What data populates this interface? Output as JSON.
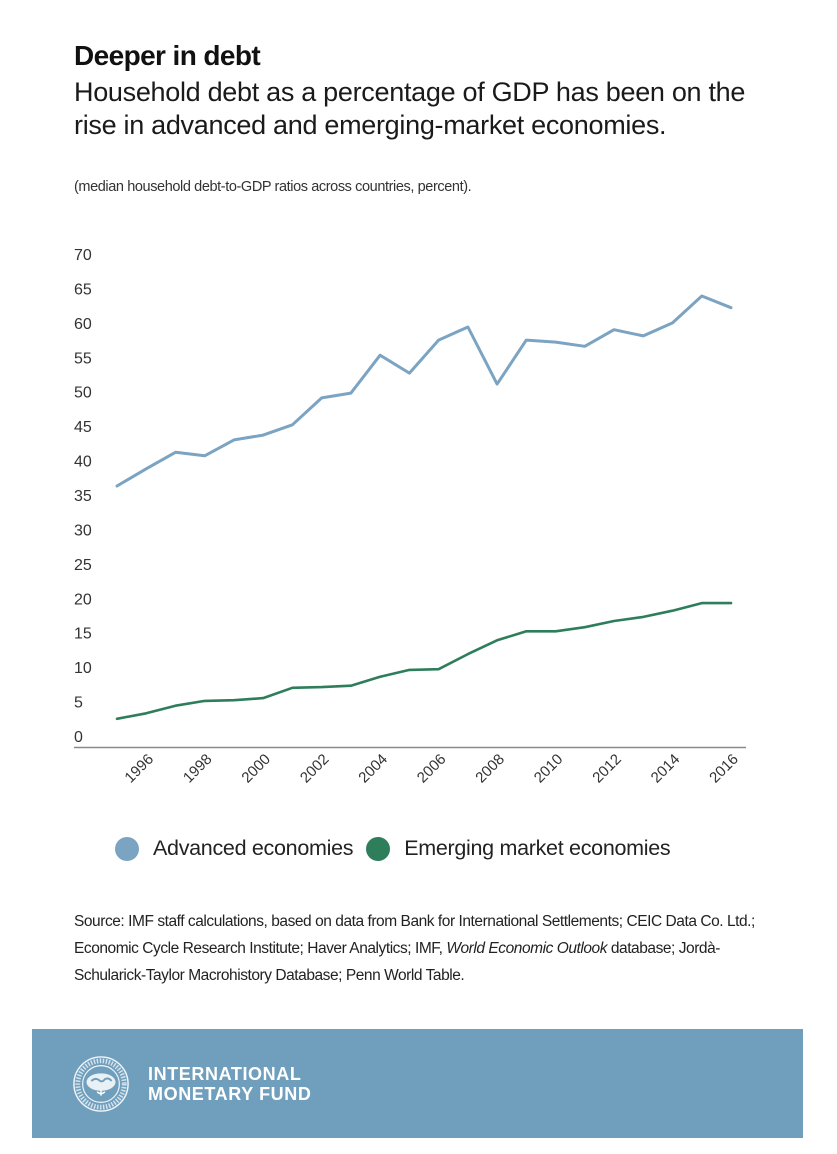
{
  "header": {
    "title": "Deeper in debt",
    "subtitle": "Household debt as a percentage of GDP has been on the rise in advanced and emerging-market economies.",
    "note": "(median household debt-to-GDP ratios across countries, percent)."
  },
  "colors": {
    "advanced": "#7ba3c2",
    "emerging": "#2e7d5b",
    "footer_band": "#709fbe",
    "axis": "#888888"
  },
  "chart_data": {
    "type": "line",
    "title": "Deeper in debt",
    "subtitle": "Household debt as a percentage of GDP has been on the rise in advanced and emerging-market economies.",
    "xlabel": "",
    "ylabel": "median household debt-to-GDP ratios across countries, percent",
    "x": [
      1995,
      1996,
      1997,
      1998,
      1999,
      2000,
      2001,
      2002,
      2003,
      2004,
      2005,
      2006,
      2007,
      2008,
      2009,
      2010,
      2011,
      2012,
      2013,
      2014,
      2015,
      2016
    ],
    "series": [
      {
        "name": "Advanced economies",
        "color": "#7ba3c2",
        "values": [
          36.3,
          38.8,
          41.2,
          40.7,
          43.0,
          43.7,
          45.2,
          49.1,
          49.8,
          55.3,
          52.7,
          57.5,
          59.4,
          51.1,
          57.5,
          57.2,
          56.6,
          59.0,
          58.1,
          60.0,
          63.9,
          62.2
        ]
      },
      {
        "name": "Emerging market economies",
        "color": "#2e7d5b",
        "values": [
          2.5,
          3.3,
          4.4,
          5.1,
          5.2,
          5.5,
          7.0,
          7.1,
          7.3,
          8.6,
          9.6,
          9.7,
          11.9,
          13.9,
          15.2,
          15.2,
          15.8,
          16.7,
          17.3,
          18.2,
          19.3,
          19.3
        ]
      }
    ],
    "ylim": [
      0,
      70
    ],
    "yticks": [
      0,
      5,
      10,
      15,
      20,
      25,
      30,
      35,
      40,
      45,
      50,
      55,
      60,
      65,
      70
    ],
    "xticks": [
      1996,
      1998,
      2000,
      2002,
      2004,
      2006,
      2008,
      2010,
      2012,
      2014,
      2016
    ],
    "xtick_labels": [
      "1996",
      "1998",
      "2000",
      "2002",
      "2004",
      "2006",
      "2008",
      "2010",
      "2012",
      "2014",
      "2016"
    ],
    "grid": false,
    "legend_placement": "bottom"
  },
  "legend": {
    "items": [
      {
        "label": "Advanced economies",
        "color": "#7ba3c2"
      },
      {
        "label": "Emerging market economies",
        "color": "#2e7d5b"
      }
    ]
  },
  "source": {
    "part1": "Source: IMF staff calculations, based on data from Bank for International Settlements; CEIC Data Co. Ltd.; Economic Cycle Research Institute; Haver Analytics; IMF, ",
    "italic1": "World Economic Outlook",
    "part2": " database; Jordà-Schularick-Taylor Macrohistory Database; Penn World Table."
  },
  "footer": {
    "org_line1": "INTERNATIONAL",
    "org_line2": "MONETARY FUND",
    "seal_icon": "imf-seal-icon"
  }
}
